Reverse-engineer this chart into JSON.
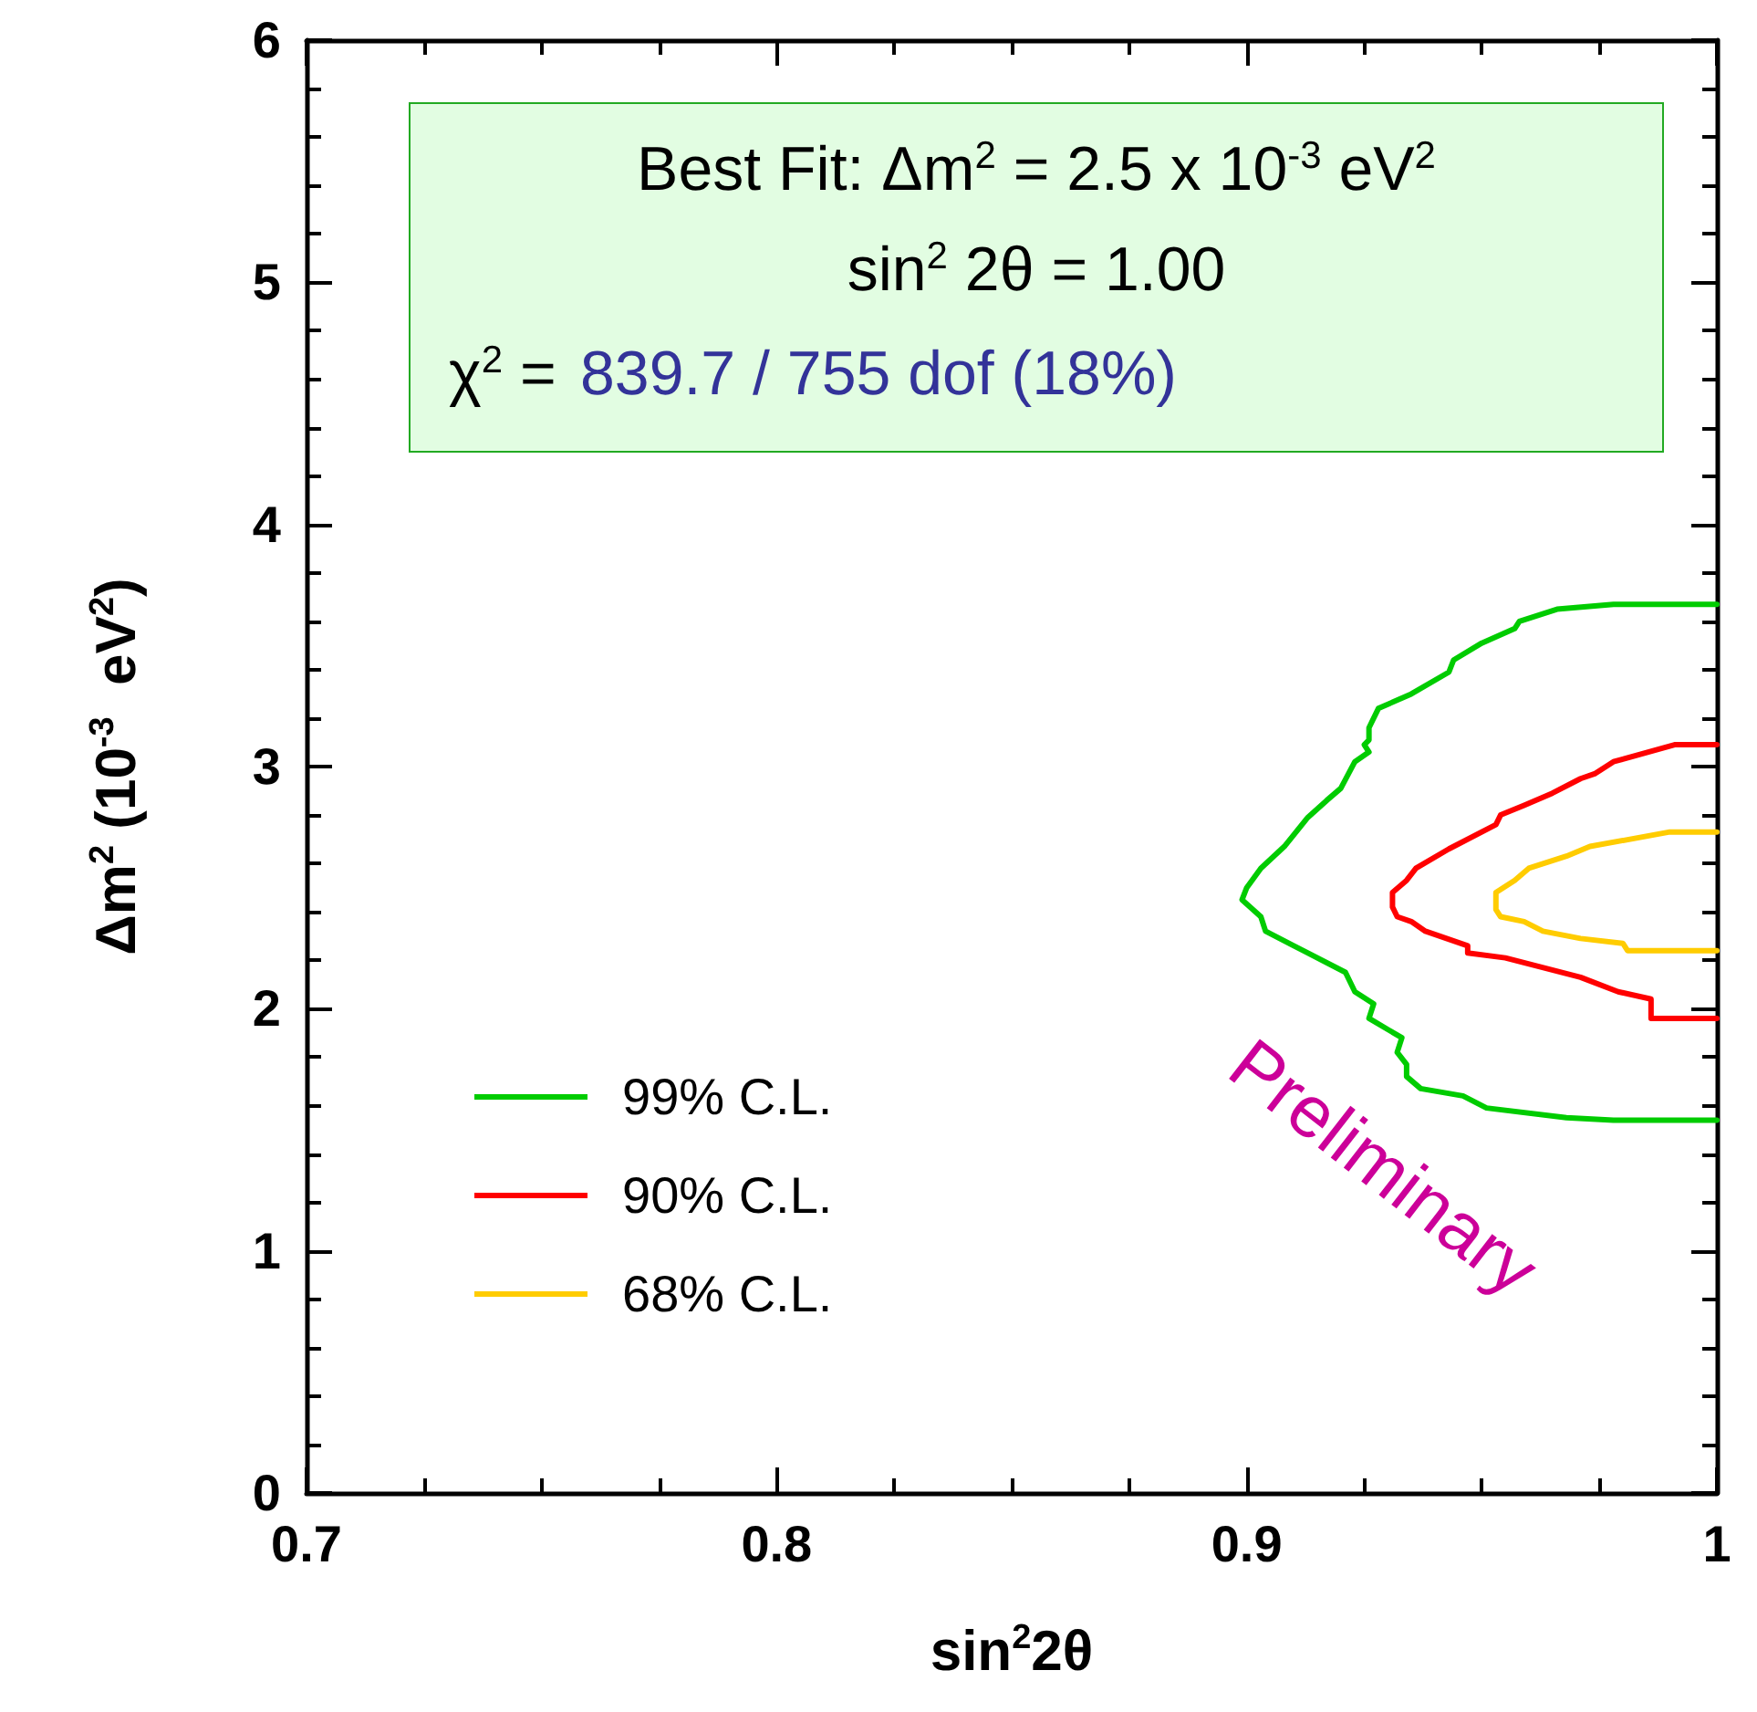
{
  "chart_data": {
    "type": "line",
    "xlabel": "sin$^{2}$2θ",
    "ylabel": "Δm$^{2}$ (10$^{-3}$  eV$^{2}$)",
    "xlim": [
      0.7,
      1
    ],
    "xticks": [
      0.7,
      0.8,
      0.9,
      1
    ],
    "ylim": [
      0,
      6
    ],
    "yticks": [
      0,
      1,
      2,
      3,
      4,
      5,
      6
    ],
    "grid": false,
    "legend": "bottom left",
    "marker": "none",
    "line_style": "solid",
    "annotations": [
      "Best Fit: Δm$^{2}$ = 2.5 x 10$^{-3}$ eV$^{2}$",
      "sin$^{2}$ 2θ = 1.00",
      "χ$^{2}$ =",
      "839.7 / 755 dof (18%)",
      "Preliminary"
    ],
    "series": [
      {
        "name": "99% C.L.",
        "color": "#00cc00",
        "x": [
          1.0,
          0.978,
          0.966,
          0.958,
          0.957,
          0.95,
          0.944,
          0.943,
          0.935,
          0.928,
          0.926,
          0.926,
          0.925,
          0.926,
          0.923,
          0.92,
          0.917,
          0.913,
          0.908,
          0.903,
          0.9,
          0.899,
          0.903,
          0.904,
          0.91,
          0.912,
          0.921,
          0.923,
          0.927,
          0.926,
          0.933,
          0.932,
          0.934,
          0.934,
          0.937,
          0.946,
          0.951,
          0.968,
          0.978,
          1.0
        ],
        "values": [
          3.67,
          3.67,
          3.65,
          3.6,
          3.57,
          3.51,
          3.44,
          3.39,
          3.3,
          3.24,
          3.16,
          3.11,
          3.09,
          3.06,
          3.02,
          2.91,
          2.86,
          2.79,
          2.67,
          2.58,
          2.5,
          2.45,
          2.38,
          2.32,
          2.26,
          2.24,
          2.15,
          2.07,
          2.02,
          1.96,
          1.88,
          1.82,
          1.77,
          1.72,
          1.67,
          1.64,
          1.59,
          1.55,
          1.54,
          1.54
        ]
      },
      {
        "name": "90% C.L.",
        "color": "#ff0000",
        "x": [
          1.0,
          0.991,
          0.978,
          0.974,
          0.971,
          0.965,
          0.959,
          0.954,
          0.953,
          0.943,
          0.936,
          0.934,
          0.931,
          0.931,
          0.932,
          0.935,
          0.938,
          0.947,
          0.947,
          0.955,
          0.971,
          0.979,
          0.986,
          0.986,
          1.0
        ],
        "values": [
          3.09,
          3.09,
          3.02,
          2.97,
          2.95,
          2.89,
          2.84,
          2.8,
          2.76,
          2.66,
          2.58,
          2.53,
          2.48,
          2.42,
          2.38,
          2.36,
          2.32,
          2.26,
          2.23,
          2.21,
          2.13,
          2.07,
          2.04,
          1.96,
          1.96
        ]
      },
      {
        "name": "68% C.L.",
        "color": "#ffcc00",
        "x": [
          1.0,
          0.99,
          0.973,
          0.968,
          0.96,
          0.957,
          0.953,
          0.953,
          0.954,
          0.959,
          0.963,
          0.971,
          0.98,
          0.981,
          1.0
        ],
        "values": [
          2.73,
          2.73,
          2.67,
          2.63,
          2.58,
          2.53,
          2.48,
          2.41,
          2.38,
          2.36,
          2.32,
          2.29,
          2.27,
          2.24,
          2.24
        ]
      }
    ]
  }
}
